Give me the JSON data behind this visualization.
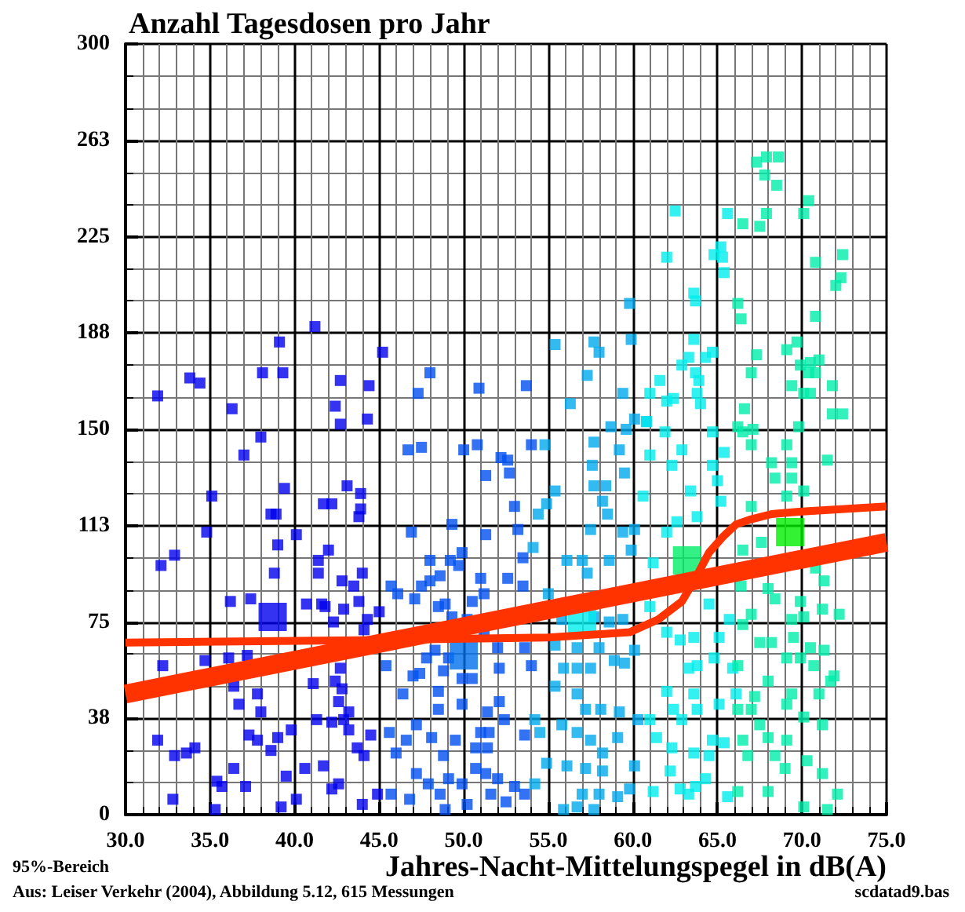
{
  "chart_data": {
    "type": "scatter",
    "title": "Anzahl Tagesdosen pro Jahr",
    "xlabel": "Jahres-Nacht-Mittelungspegel in dB(A)",
    "annotations": [
      "95%-Bereich",
      "Aus: Leiser Verkehr (2004), Abbildung 5.12, 615 Messungen",
      "scdatad9.bas"
    ],
    "xlim": [
      30,
      75
    ],
    "ylim": [
      0,
      300
    ],
    "xticks": [
      {
        "value": 30,
        "label": "30.0"
      },
      {
        "value": 35,
        "label": "35.0"
      },
      {
        "value": 40,
        "label": "40.0"
      },
      {
        "value": 45,
        "label": "45.0"
      },
      {
        "value": 50,
        "label": "50.0"
      },
      {
        "value": 55,
        "label": "55.0"
      },
      {
        "value": 60,
        "label": "60.0"
      },
      {
        "value": 65,
        "label": "65.0"
      },
      {
        "value": 70,
        "label": "70.0"
      },
      {
        "value": 75,
        "label": "75.0"
      }
    ],
    "yticks": [
      0,
      {
        "value": 37.5,
        "label": "38"
      },
      75,
      {
        "value": 112.5,
        "label": "113"
      },
      150,
      {
        "value": 187.5,
        "label": "188"
      },
      225,
      {
        "value": 262.5,
        "label": "263"
      },
      300
    ],
    "grid": true,
    "marker": "square",
    "series": [
      {
        "color": "#0000ee",
        "x": [
          38.0,
          37.0,
          35.1,
          39.4,
          43.1,
          43.9,
          41.7,
          42.2,
          38.6,
          38.9,
          43.8,
          43.9,
          34.8,
          40.1,
          39.0,
          42.0,
          32.9,
          32.1,
          41.4,
          41.4,
          38.8,
          44.0,
          42.8,
          43.5,
          36.2,
          37.4,
          40.7,
          41.6,
          41.8,
          42.9,
          43.8,
          45.0,
          42.3,
          44.3,
          44.1,
          32.2,
          34.7,
          36.1,
          37.2,
          41.1,
          42.4,
          42.7,
          42.8,
          36.4,
          36.7,
          37.8,
          38.0,
          42.6,
          43.2,
          41.3,
          42.2,
          42.9,
          43.2,
          39.8,
          37.3,
          37.8,
          39.0,
          31.9,
          32.9,
          33.6,
          34.1,
          38.6,
          44.5,
          43.7,
          44.1,
          36.4,
          40.6,
          41.7,
          39.5,
          35.4,
          35.7,
          37.1,
          42.6,
          42.2,
          32.8,
          40.1,
          39.2,
          35.3,
          44.0,
          44.9,
          41.2,
          39.1,
          33.8,
          34.4,
          38.1,
          39.3,
          31.9,
          36.3,
          42.7,
          44.4,
          42.4,
          42.7,
          44.3,
          45.2
        ],
        "values": [
          147,
          140,
          124,
          127,
          128,
          125,
          121,
          121,
          117,
          117,
          116,
          119,
          110,
          109,
          105,
          103,
          101,
          97,
          99,
          94,
          94,
          94,
          91,
          89,
          83,
          84,
          82,
          82,
          81,
          80,
          83,
          79,
          75,
          76,
          72,
          58,
          60,
          61,
          62,
          51,
          52,
          57,
          49,
          50,
          43,
          47,
          40,
          44,
          40,
          37,
          36,
          37,
          33,
          33,
          31,
          29,
          30,
          29,
          23,
          24,
          26,
          25,
          31,
          26,
          23,
          18,
          18,
          19,
          15,
          13,
          11,
          11,
          12,
          10,
          6,
          6,
          3,
          2,
          4,
          8,
          190,
          184,
          170,
          168,
          172,
          172,
          163,
          158,
          169,
          167,
          159,
          152,
          154,
          180
        ]
      },
      {
        "color": "#0050f0",
        "x": [
          46.7,
          47.5,
          50.0,
          50.8,
          54.0,
          52.2,
          52.6,
          51.3,
          52.7,
          53.0,
          49.3,
          46.9,
          51.3,
          53.2,
          49.9,
          48.0,
          49.2,
          49.7,
          53.5,
          48.6,
          51.0,
          52.6,
          45.7,
          48.0,
          47.5,
          53.5,
          46.1,
          47.1,
          51.2,
          50.5,
          48.5,
          48.9,
          49.3,
          50.2,
          51.2,
          48.3,
          52.0,
          53.6,
          45.4,
          47.8,
          49.1,
          52.1,
          54.0,
          48.8,
          47.4,
          49.9,
          50.5,
          47.0,
          46.4,
          48.5,
          49.9,
          52.1,
          48.5,
          51.4,
          52.4,
          47.2,
          45.6,
          46.6,
          48.1,
          49.5,
          51.0,
          51.5,
          53.6,
          46.0,
          50.7,
          51.4,
          48.8,
          47.2,
          49.1,
          49.9,
          50.7,
          51.3,
          52.0,
          53.0,
          47.9,
          45.7,
          46.8,
          48.6,
          51.6,
          52.5,
          53.6,
          48.9,
          50.2,
          48.0,
          47.3,
          50.9,
          53.7
        ],
        "values": [
          142,
          143,
          142,
          144,
          144,
          139,
          138,
          132,
          133,
          120,
          113,
          110,
          109,
          111,
          102,
          99,
          99,
          97,
          100,
          93,
          92,
          92,
          89,
          91,
          89,
          89,
          86,
          84,
          86,
          83,
          81,
          82,
          77,
          76,
          71,
          64,
          65,
          65,
          58,
          61,
          61,
          57,
          58,
          56,
          55,
          53,
          53,
          54,
          47,
          48,
          43,
          44,
          41,
          40,
          37,
          35,
          32,
          29,
          30,
          29,
          32,
          32,
          31,
          24,
          26,
          26,
          23,
          16,
          14,
          12,
          18,
          16,
          14,
          11,
          12,
          8,
          6,
          8,
          8,
          5,
          8,
          2,
          4,
          172,
          164,
          166,
          167
        ]
      },
      {
        "color": "#00aaee",
        "x": [
          59.8,
          55.4,
          57.7,
          58.0,
          59.9,
          57.3,
          56.3,
          59.4,
          60.1,
          58.7,
          59.6,
          60.8,
          54.8,
          57.7,
          59.2,
          57.6,
          57.7,
          58.4,
          59.5,
          58.2,
          58.5,
          55.4,
          54.9,
          54.4,
          57.5,
          54.1,
          56.1,
          57.0,
          57.3,
          58.6,
          59.4,
          60.1,
          59.9,
          55.0,
          55.8,
          57.7,
          58.6,
          59.4,
          55.4,
          56.7,
          58.0,
          58.9,
          59.5,
          60.1,
          55.9,
          56.7,
          57.5,
          55.4,
          56.7,
          57.2,
          58.1,
          59.2,
          60.3,
          55.8,
          56.7,
          54.5,
          57.5,
          58.2,
          59.1,
          54.9,
          56.1,
          57.2,
          58.2,
          60.1,
          54.2,
          57.0,
          58.0,
          59.1,
          59.8,
          55.9,
          56.7,
          57.7,
          54.2
        ],
        "values": [
          199,
          183,
          184,
          180,
          185,
          171,
          160,
          164,
          154,
          151,
          150,
          153,
          144,
          145,
          142,
          136,
          128,
          128,
          133,
          122,
          117,
          126,
          121,
          117,
          111,
          104,
          99,
          99,
          94,
          99,
          110,
          111,
          103,
          86,
          76,
          77,
          75,
          76,
          66,
          65,
          65,
          60,
          59,
          64,
          57,
          57,
          57,
          50,
          47,
          41,
          41,
          40,
          37,
          35,
          32,
          32,
          29,
          24,
          30,
          20,
          19,
          18,
          17,
          19,
          12,
          8,
          8,
          7,
          10,
          2,
          3,
          2,
          37
        ]
      },
      {
        "color": "#00eeee",
        "x": [
          62.5,
          65.6,
          62.0,
          64.8,
          65.2,
          65.3,
          65.4,
          63.6,
          63.7,
          63.6,
          64.7,
          64.3,
          63.3,
          62.9,
          63.7,
          63.9,
          63.8,
          64.0,
          61.6,
          61.0,
          62.0,
          62.4,
          60.8,
          61.9,
          64.7,
          61.0,
          62.9,
          62.3,
          64.7,
          65.4,
          65.0,
          65.2,
          60.6,
          63.4,
          63.8,
          62.6,
          62.0,
          61.2,
          61.0,
          62.0,
          62.8,
          63.6,
          64.5,
          65.7,
          65.1,
          64.8,
          63.8,
          63.3,
          65.9,
          62.0,
          63.6,
          63.8,
          62.4,
          66.1,
          65.1,
          61.0,
          62.9,
          61.4,
          62.3,
          63.6,
          64.7,
          65.4,
          64.5,
          62.2,
          61.2,
          62.8,
          63.7,
          64.3,
          63.3,
          65.6
        ],
        "values": [
          235,
          234,
          217,
          218,
          221,
          217,
          211,
          203,
          200,
          185,
          180,
          178,
          178,
          175,
          172,
          169,
          164,
          160,
          169,
          164,
          161,
          162,
          153,
          149,
          149,
          140,
          142,
          136,
          136,
          141,
          130,
          122,
          124,
          126,
          116,
          114,
          110,
          98,
          81,
          71,
          68,
          69,
          82,
          76,
          69,
          61,
          58,
          57,
          57,
          48,
          47,
          41,
          41,
          47,
          43,
          37,
          37,
          30,
          26,
          24,
          29,
          28,
          23,
          17,
          9,
          10,
          11,
          14,
          8,
          7
        ]
      },
      {
        "color": "#00eeaa",
        "x": [
          67.3,
          67.9,
          68.6,
          67.8,
          68.5,
          66.5,
          67.5,
          67.9,
          70.1,
          70.4,
          70.8,
          72.4,
          72.3,
          72.0,
          70.8,
          66.2,
          66.4,
          67.3,
          67.0,
          69.1,
          69.7,
          69.9,
          70.5,
          71.0,
          70.4,
          70.8,
          69.4,
          70.1,
          70.5,
          71.8,
          71.8,
          72.4,
          66.6,
          66.2,
          67.1,
          69.8,
          66.5,
          67.0,
          68.2,
          69.4,
          69.1,
          71.5,
          68.4,
          69.4,
          70.1,
          69.1,
          67.0,
          66.5,
          67.6,
          70.8,
          71.3,
          66.4,
          68.0,
          68.4,
          69.9,
          71.2,
          72.2,
          67.0,
          66.5,
          69.4,
          70.1,
          67.5,
          68.2,
          69.5,
          70.5,
          71.3,
          69.1,
          69.9,
          66.2,
          70.7,
          68.0,
          71.9,
          71.7,
          69.4,
          71.0,
          67.2,
          66.2,
          67.0,
          69.1,
          67.5,
          70.1,
          71.2,
          66.5,
          68.0,
          69.1,
          66.8,
          68.4,
          69.0,
          70.3,
          71.2,
          66.2,
          68.0,
          72.1,
          70.1,
          71.5
        ],
        "values": [
          254,
          256,
          256,
          249,
          245,
          230,
          229,
          234,
          234,
          239,
          215,
          218,
          209,
          206,
          194,
          199,
          193,
          179,
          172,
          181,
          184,
          175,
          176,
          177,
          172,
          172,
          167,
          164,
          164,
          167,
          156,
          156,
          158,
          151,
          150,
          151,
          149,
          144,
          137,
          137,
          144,
          138,
          131,
          131,
          126,
          124,
          120,
          103,
          106,
          96,
          91,
          89,
          88,
          84,
          83,
          80,
          78,
          78,
          74,
          76,
          77,
          67,
          67,
          69,
          65,
          64,
          61,
          61,
          58,
          58,
          52,
          54,
          52,
          47,
          47,
          46,
          41,
          41,
          43,
          35,
          38,
          35,
          29,
          30,
          29,
          23,
          23,
          18,
          21,
          16,
          9,
          9,
          8,
          3,
          2
        ]
      },
      {
        "type": "bubble",
        "x": [
          38.7,
          50.0,
          57.0,
          63.2,
          69.3
        ],
        "values": [
          77,
          62,
          75,
          99,
          110
        ],
        "sizes": [
          1,
          1,
          1,
          1,
          1
        ],
        "colors": [
          "#0000ee",
          "#0070ee",
          "#00eeee",
          "#00ee66",
          "#00ee00"
        ]
      },
      {
        "type": "line",
        "marker": "none",
        "color": "#ff3300",
        "line_style": "solid",
        "x": [
          30,
          75
        ],
        "values": [
          47,
          106
        ]
      },
      {
        "type": "line",
        "marker": "none",
        "color": "#ff3300",
        "line_style": "solid",
        "x": [
          30,
          45,
          55,
          59.8,
          61.5,
          62.9,
          63.7,
          64.5,
          65.3,
          66.1,
          67,
          68.2,
          70,
          75
        ],
        "values": [
          67,
          68,
          69,
          71,
          76,
          83,
          92,
          102,
          108,
          113,
          115,
          117,
          118,
          120
        ]
      }
    ]
  }
}
